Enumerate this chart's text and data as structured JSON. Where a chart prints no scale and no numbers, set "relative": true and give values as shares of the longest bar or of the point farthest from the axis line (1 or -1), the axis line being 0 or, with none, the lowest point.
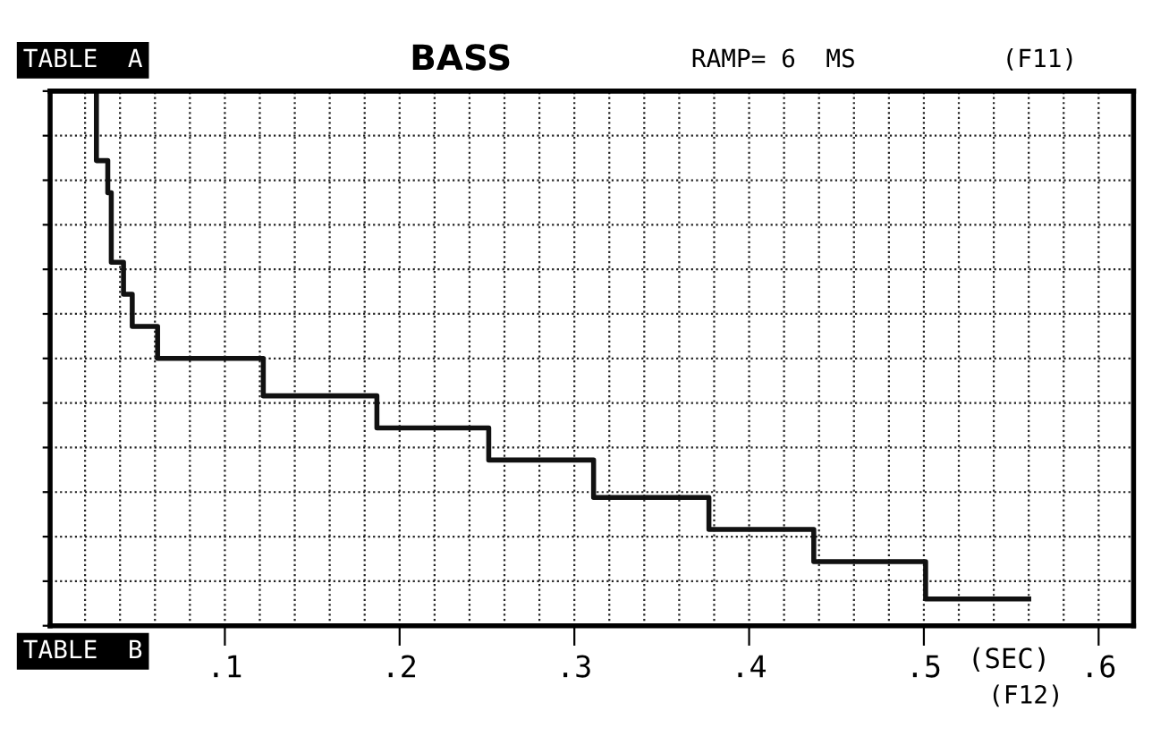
{
  "chart_data": {
    "type": "step",
    "title": "BASS",
    "xlabel": "(SEC)",
    "annotations": [
      "TABLE  A",
      "RAMP= 6  MS",
      "(F11)",
      "TABLE  B",
      "(F12)"
    ],
    "relative": true,
    "series": [
      {
        "color": "#111111",
        "x": [
          0.0265,
          0.0265,
          0.033,
          0.035,
          0.042,
          0.047,
          0.0615,
          0.122,
          0.187,
          0.251,
          0.311,
          0.377,
          0.437,
          0.501,
          0.56
        ],
        "values": [
          1.0,
          0.87,
          0.81,
          0.68,
          0.62,
          0.56,
          0.5,
          0.43,
          0.37,
          0.31,
          0.24,
          0.18,
          0.12,
          0.05,
          0.05
        ]
      }
    ],
    "xlim": [
      0,
      0.62
    ],
    "xticks": [
      {
        "value": 0.1,
        "label": ".1"
      },
      {
        "value": 0.2,
        "label": ".2"
      },
      {
        "value": 0.3,
        "label": ".3"
      },
      {
        "value": 0.4,
        "label": ".4"
      },
      {
        "value": 0.5,
        "label": ".5"
      },
      {
        "value": 0.6,
        "label": ".6"
      }
    ],
    "grid": true,
    "tick_labels": "x",
    "marker": "none",
    "line_style": "solid"
  }
}
